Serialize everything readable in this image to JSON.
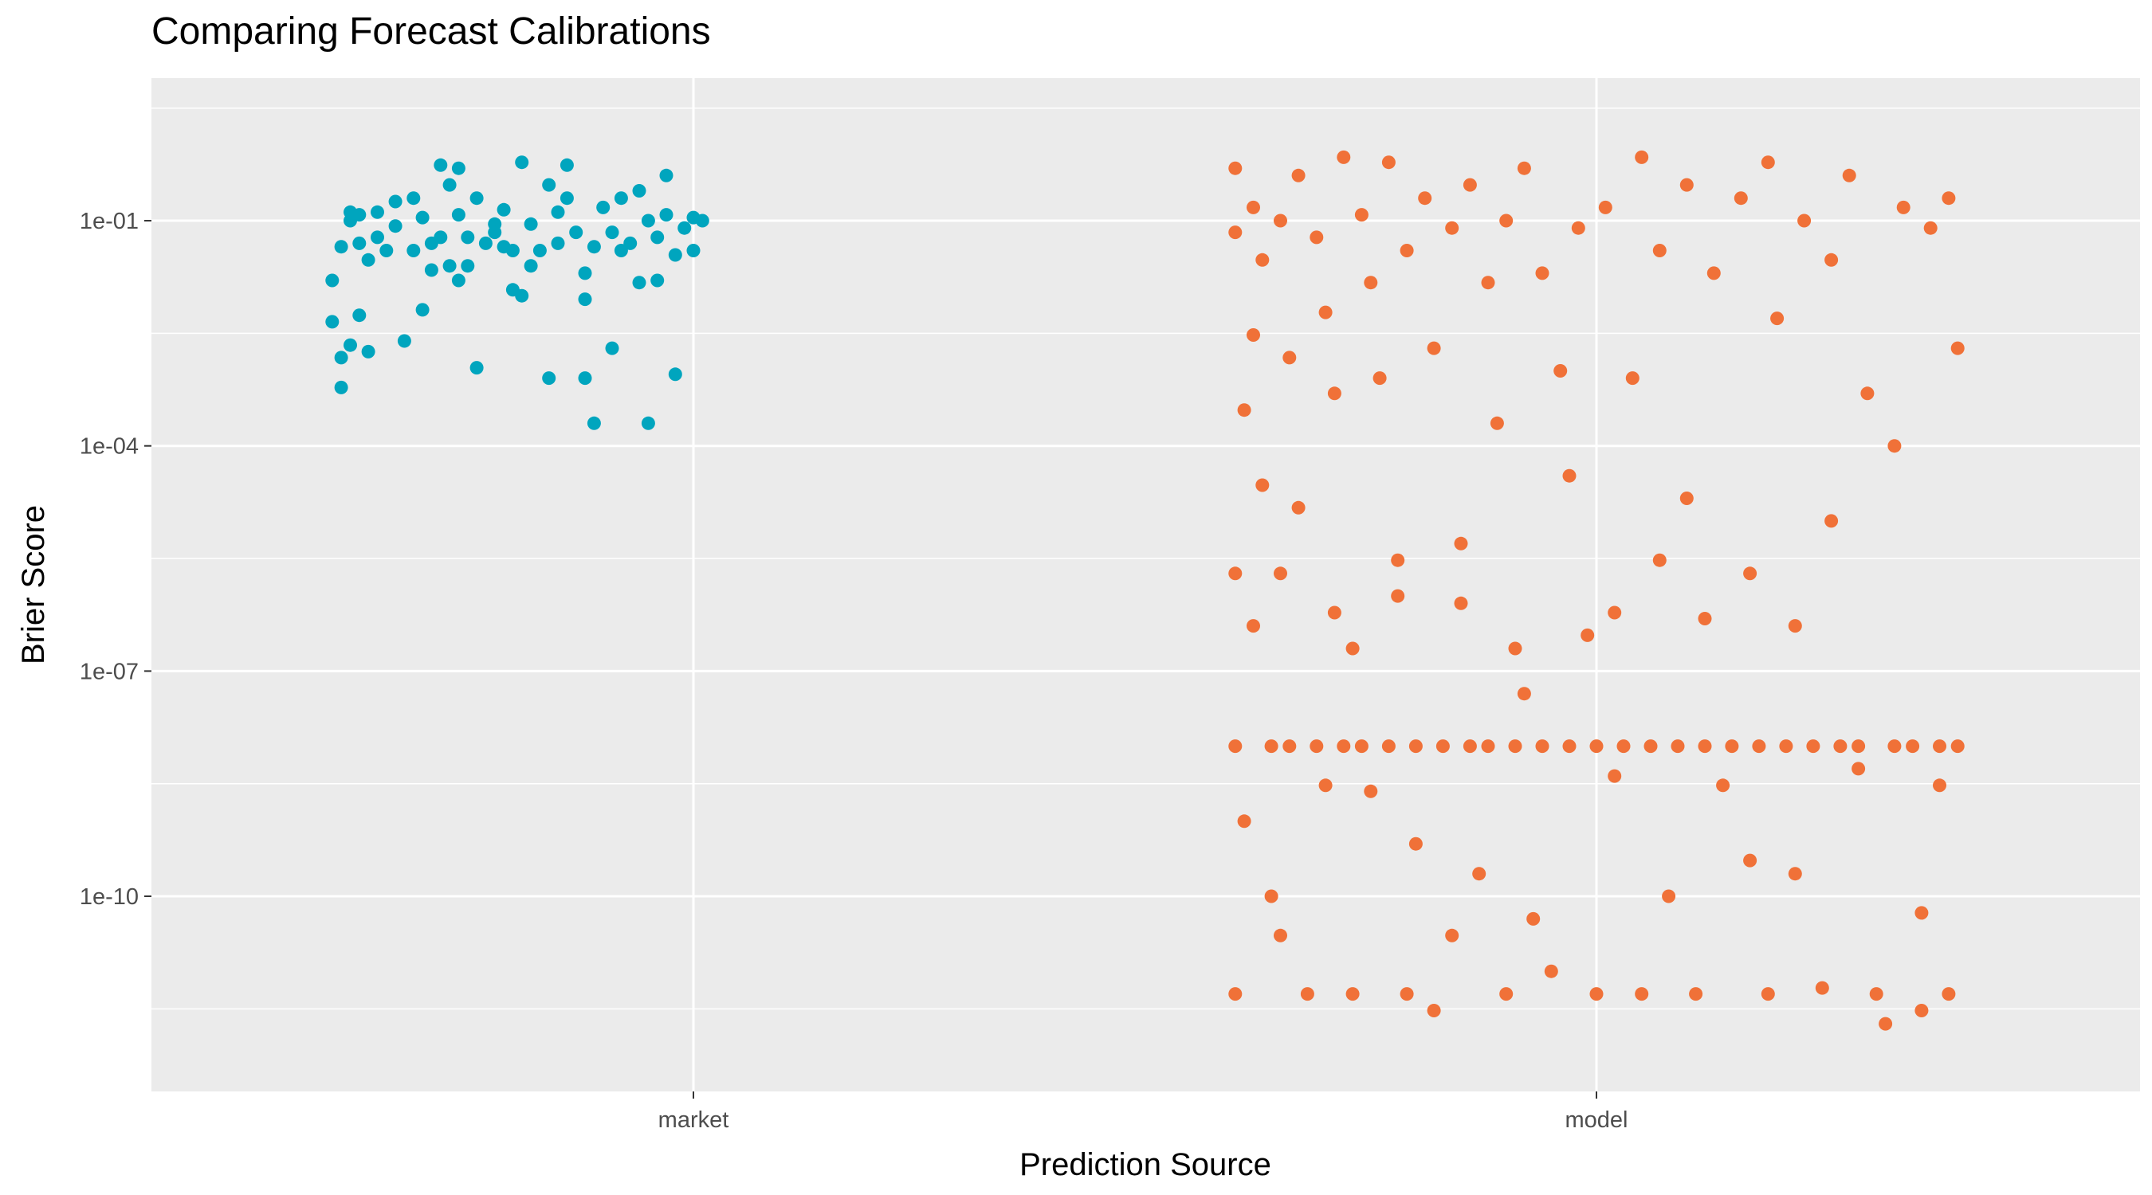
{
  "chart_data": {
    "type": "scatter",
    "title": "Comparing Forecast Calibrations",
    "xlabel": "Prediction Source",
    "ylabel": "Brier Score",
    "y_scale": "log10",
    "ylim": [
      "1e-12.6",
      "1e0.9"
    ],
    "grid": true,
    "legend": "none",
    "categories": [
      "market",
      "model"
    ],
    "y_tick_labels": [
      "1e-01",
      "1e-04",
      "1e-07",
      "1e-10"
    ],
    "y_tick_values": [
      0.1,
      0.0001,
      1e-07,
      1e-10
    ],
    "colors": {
      "market": "#00A5BE",
      "model": "#F07138",
      "panel": "#EBEBEB",
      "grid": "#FFFFFF"
    },
    "series": [
      {
        "name": "market",
        "category": "market",
        "points": [
          {
            "dx": -0.4,
            "y": 0.016
          },
          {
            "dx": -0.4,
            "y": 0.0045
          },
          {
            "dx": -0.39,
            "y": 0.045
          },
          {
            "dx": -0.39,
            "y": 0.0015
          },
          {
            "dx": -0.39,
            "y": 0.0006
          },
          {
            "dx": -0.38,
            "y": 0.13
          },
          {
            "dx": -0.38,
            "y": 0.1
          },
          {
            "dx": -0.38,
            "y": 0.0022
          },
          {
            "dx": -0.37,
            "y": 0.05
          },
          {
            "dx": -0.37,
            "y": 0.12
          },
          {
            "dx": -0.36,
            "y": 0.03
          },
          {
            "dx": -0.36,
            "y": 0.0018
          },
          {
            "dx": -0.35,
            "y": 0.13
          },
          {
            "dx": -0.35,
            "y": 0.06
          },
          {
            "dx": -0.34,
            "y": 0.04
          },
          {
            "dx": -0.33,
            "y": 0.18
          },
          {
            "dx": -0.33,
            "y": 0.085
          },
          {
            "dx": -0.32,
            "y": 0.0025
          },
          {
            "dx": -0.31,
            "y": 0.2
          },
          {
            "dx": -0.31,
            "y": 0.04
          },
          {
            "dx": -0.3,
            "y": 0.11
          },
          {
            "dx": -0.29,
            "y": 0.05
          },
          {
            "dx": -0.29,
            "y": 0.022
          },
          {
            "dx": -0.28,
            "y": 0.55
          },
          {
            "dx": -0.28,
            "y": 0.06
          },
          {
            "dx": -0.27,
            "y": 0.025
          },
          {
            "dx": -0.27,
            "y": 0.3
          },
          {
            "dx": -0.26,
            "y": 0.5
          },
          {
            "dx": -0.26,
            "y": 0.12
          },
          {
            "dx": -0.25,
            "y": 0.025
          },
          {
            "dx": -0.25,
            "y": 0.06
          },
          {
            "dx": -0.24,
            "y": 0.2
          },
          {
            "dx": -0.24,
            "y": 0.0011
          },
          {
            "dx": -0.23,
            "y": 0.05
          },
          {
            "dx": -0.22,
            "y": 0.09
          },
          {
            "dx": -0.22,
            "y": 0.07
          },
          {
            "dx": -0.21,
            "y": 0.045
          },
          {
            "dx": -0.21,
            "y": 0.14
          },
          {
            "dx": -0.2,
            "y": 0.04
          },
          {
            "dx": -0.19,
            "y": 0.6
          },
          {
            "dx": -0.19,
            "y": 0.01
          },
          {
            "dx": -0.18,
            "y": 0.025
          },
          {
            "dx": -0.18,
            "y": 0.09
          },
          {
            "dx": -0.17,
            "y": 0.04
          },
          {
            "dx": -0.16,
            "y": 0.0008
          },
          {
            "dx": -0.16,
            "y": 0.3
          },
          {
            "dx": -0.15,
            "y": 0.13
          },
          {
            "dx": -0.15,
            "y": 0.05
          },
          {
            "dx": -0.14,
            "y": 0.55
          },
          {
            "dx": -0.14,
            "y": 0.2
          },
          {
            "dx": -0.13,
            "y": 0.07
          },
          {
            "dx": -0.12,
            "y": 0.0008
          },
          {
            "dx": -0.12,
            "y": 0.02
          },
          {
            "dx": -0.11,
            "y": 0.0002
          },
          {
            "dx": -0.11,
            "y": 0.045
          },
          {
            "dx": -0.1,
            "y": 0.15
          },
          {
            "dx": -0.09,
            "y": 0.07
          },
          {
            "dx": -0.09,
            "y": 0.002
          },
          {
            "dx": -0.08,
            "y": 0.2
          },
          {
            "dx": -0.08,
            "y": 0.04
          },
          {
            "dx": -0.07,
            "y": 0.05
          },
          {
            "dx": -0.06,
            "y": 0.015
          },
          {
            "dx": -0.05,
            "y": 0.1
          },
          {
            "dx": -0.05,
            "y": 0.0002
          },
          {
            "dx": -0.04,
            "y": 0.06
          },
          {
            "dx": -0.03,
            "y": 0.4
          },
          {
            "dx": -0.03,
            "y": 0.12
          },
          {
            "dx": -0.02,
            "y": 0.0009
          },
          {
            "dx": -0.02,
            "y": 0.035
          },
          {
            "dx": -0.01,
            "y": 0.08
          },
          {
            "dx": 0.0,
            "y": 0.11
          },
          {
            "dx": 0.0,
            "y": 0.04
          },
          {
            "dx": 0.01,
            "y": 0.1
          },
          {
            "dx": -0.37,
            "y": 0.0055
          },
          {
            "dx": -0.3,
            "y": 0.0065
          },
          {
            "dx": -0.26,
            "y": 0.016
          },
          {
            "dx": -0.2,
            "y": 0.012
          },
          {
            "dx": -0.12,
            "y": 0.009
          },
          {
            "dx": -0.06,
            "y": 0.25
          },
          {
            "dx": -0.04,
            "y": 0.016
          }
        ]
      },
      {
        "name": "model",
        "category": "model",
        "points": [
          {
            "dx": -0.4,
            "y": 0.5
          },
          {
            "dx": -0.4,
            "y": 0.07
          },
          {
            "dx": -0.4,
            "y": 2e-06
          },
          {
            "dx": -0.4,
            "y": 1e-08
          },
          {
            "dx": -0.4,
            "y": 5e-12
          },
          {
            "dx": -0.39,
            "y": 0.0003
          },
          {
            "dx": -0.39,
            "y": 1e-09
          },
          {
            "dx": -0.38,
            "y": 0.15
          },
          {
            "dx": -0.38,
            "y": 0.003
          },
          {
            "dx": -0.38,
            "y": 4e-07
          },
          {
            "dx": -0.37,
            "y": 0.03
          },
          {
            "dx": -0.37,
            "y": 3e-05
          },
          {
            "dx": -0.36,
            "y": 1e-10
          },
          {
            "dx": -0.36,
            "y": 1e-08
          },
          {
            "dx": -0.35,
            "y": 0.1
          },
          {
            "dx": -0.35,
            "y": 3e-11
          },
          {
            "dx": -0.34,
            "y": 0.0015
          },
          {
            "dx": -0.34,
            "y": 1e-08
          },
          {
            "dx": -0.33,
            "y": 0.4
          },
          {
            "dx": -0.33,
            "y": 1.5e-05
          },
          {
            "dx": -0.32,
            "y": 5e-12
          },
          {
            "dx": -0.31,
            "y": 0.06
          },
          {
            "dx": -0.31,
            "y": 1e-08
          },
          {
            "dx": -0.3,
            "y": 0.006
          },
          {
            "dx": -0.3,
            "y": 3e-09
          },
          {
            "dx": -0.29,
            "y": 0.0005
          },
          {
            "dx": -0.28,
            "y": 0.7
          },
          {
            "dx": -0.28,
            "y": 1e-08
          },
          {
            "dx": -0.27,
            "y": 2e-07
          },
          {
            "dx": -0.27,
            "y": 5e-12
          },
          {
            "dx": -0.26,
            "y": 0.12
          },
          {
            "dx": -0.26,
            "y": 1e-08
          },
          {
            "dx": -0.25,
            "y": 0.015
          },
          {
            "dx": -0.25,
            "y": 2.5e-09
          },
          {
            "dx": -0.24,
            "y": 0.0008
          },
          {
            "dx": -0.23,
            "y": 0.6
          },
          {
            "dx": -0.23,
            "y": 1e-08
          },
          {
            "dx": -0.22,
            "y": 3e-06
          },
          {
            "dx": -0.21,
            "y": 0.04
          },
          {
            "dx": -0.21,
            "y": 5e-12
          },
          {
            "dx": -0.2,
            "y": 5e-10
          },
          {
            "dx": -0.2,
            "y": 1e-08
          },
          {
            "dx": -0.19,
            "y": 0.2
          },
          {
            "dx": -0.18,
            "y": 3e-12
          },
          {
            "dx": -0.18,
            "y": 0.002
          },
          {
            "dx": -0.17,
            "y": 1e-08
          },
          {
            "dx": -0.16,
            "y": 0.08
          },
          {
            "dx": -0.16,
            "y": 3e-11
          },
          {
            "dx": -0.15,
            "y": 5e-06
          },
          {
            "dx": -0.14,
            "y": 0.3
          },
          {
            "dx": -0.14,
            "y": 1e-08
          },
          {
            "dx": -0.13,
            "y": 2e-10
          },
          {
            "dx": -0.12,
            "y": 0.015
          },
          {
            "dx": -0.12,
            "y": 1e-08
          },
          {
            "dx": -0.11,
            "y": 0.0002
          },
          {
            "dx": -0.1,
            "y": 0.1
          },
          {
            "dx": -0.1,
            "y": 5e-12
          },
          {
            "dx": -0.09,
            "y": 1e-08
          },
          {
            "dx": -0.08,
            "y": 5e-08
          },
          {
            "dx": -0.08,
            "y": 0.5
          },
          {
            "dx": -0.07,
            "y": 5e-11
          },
          {
            "dx": -0.06,
            "y": 1e-08
          },
          {
            "dx": -0.06,
            "y": 0.02
          },
          {
            "dx": -0.05,
            "y": 1e-11
          },
          {
            "dx": -0.04,
            "y": 0.001
          },
          {
            "dx": -0.03,
            "y": 1e-08
          },
          {
            "dx": -0.02,
            "y": 0.08
          },
          {
            "dx": -0.01,
            "y": 3e-07
          },
          {
            "dx": 0.0,
            "y": 1e-08
          },
          {
            "dx": 0.0,
            "y": 5e-12
          },
          {
            "dx": 0.01,
            "y": 0.15
          },
          {
            "dx": 0.02,
            "y": 4e-09
          },
          {
            "dx": 0.03,
            "y": 1e-08
          },
          {
            "dx": 0.04,
            "y": 0.0008
          },
          {
            "dx": 0.05,
            "y": 0.7
          },
          {
            "dx": 0.05,
            "y": 5e-12
          },
          {
            "dx": 0.06,
            "y": 1e-08
          },
          {
            "dx": 0.07,
            "y": 0.04
          },
          {
            "dx": 0.08,
            "y": 1e-10
          },
          {
            "dx": 0.09,
            "y": 1e-08
          },
          {
            "dx": 0.1,
            "y": 0.3
          },
          {
            "dx": 0.1,
            "y": 2e-05
          },
          {
            "dx": 0.11,
            "y": 5e-12
          },
          {
            "dx": 0.12,
            "y": 1e-08
          },
          {
            "dx": 0.13,
            "y": 0.02
          },
          {
            "dx": 0.14,
            "y": 3e-09
          },
          {
            "dx": 0.15,
            "y": 1e-08
          },
          {
            "dx": 0.16,
            "y": 0.2
          },
          {
            "dx": 0.17,
            "y": 3e-10
          },
          {
            "dx": 0.18,
            "y": 1e-08
          },
          {
            "dx": 0.19,
            "y": 0.6
          },
          {
            "dx": 0.19,
            "y": 5e-12
          },
          {
            "dx": 0.2,
            "y": 0.005
          },
          {
            "dx": 0.21,
            "y": 1e-08
          },
          {
            "dx": 0.22,
            "y": 2e-10
          },
          {
            "dx": 0.23,
            "y": 0.1
          },
          {
            "dx": 0.24,
            "y": 1e-08
          },
          {
            "dx": 0.25,
            "y": 6e-12
          },
          {
            "dx": 0.26,
            "y": 0.03
          },
          {
            "dx": 0.27,
            "y": 1e-08
          },
          {
            "dx": 0.28,
            "y": 0.4
          },
          {
            "dx": 0.29,
            "y": 1e-08
          },
          {
            "dx": 0.3,
            "y": 0.0005
          },
          {
            "dx": 0.31,
            "y": 5e-12
          },
          {
            "dx": 0.32,
            "y": 2e-12
          },
          {
            "dx": 0.33,
            "y": 1e-08
          },
          {
            "dx": 0.34,
            "y": 0.15
          },
          {
            "dx": 0.35,
            "y": 1e-08
          },
          {
            "dx": 0.36,
            "y": 6e-11
          },
          {
            "dx": 0.37,
            "y": 0.08
          },
          {
            "dx": 0.38,
            "y": 1e-08
          },
          {
            "dx": 0.39,
            "y": 5e-12
          },
          {
            "dx": 0.39,
            "y": 0.2
          },
          {
            "dx": 0.4,
            "y": 1e-08
          },
          {
            "dx": 0.4,
            "y": 0.002
          },
          {
            "dx": 0.38,
            "y": 3e-09
          },
          {
            "dx": 0.36,
            "y": 3e-12
          },
          {
            "dx": 0.33,
            "y": 0.0001
          },
          {
            "dx": 0.29,
            "y": 5e-09
          },
          {
            "dx": 0.26,
            "y": 1e-05
          },
          {
            "dx": 0.22,
            "y": 4e-07
          },
          {
            "dx": 0.17,
            "y": 2e-06
          },
          {
            "dx": 0.12,
            "y": 5e-07
          },
          {
            "dx": 0.07,
            "y": 3e-06
          },
          {
            "dx": 0.02,
            "y": 6e-07
          },
          {
            "dx": -0.03,
            "y": 4e-05
          },
          {
            "dx": -0.09,
            "y": 2e-07
          },
          {
            "dx": -0.15,
            "y": 8e-07
          },
          {
            "dx": -0.22,
            "y": 1e-06
          },
          {
            "dx": -0.29,
            "y": 6e-07
          },
          {
            "dx": -0.35,
            "y": 2e-06
          }
        ]
      }
    ]
  }
}
